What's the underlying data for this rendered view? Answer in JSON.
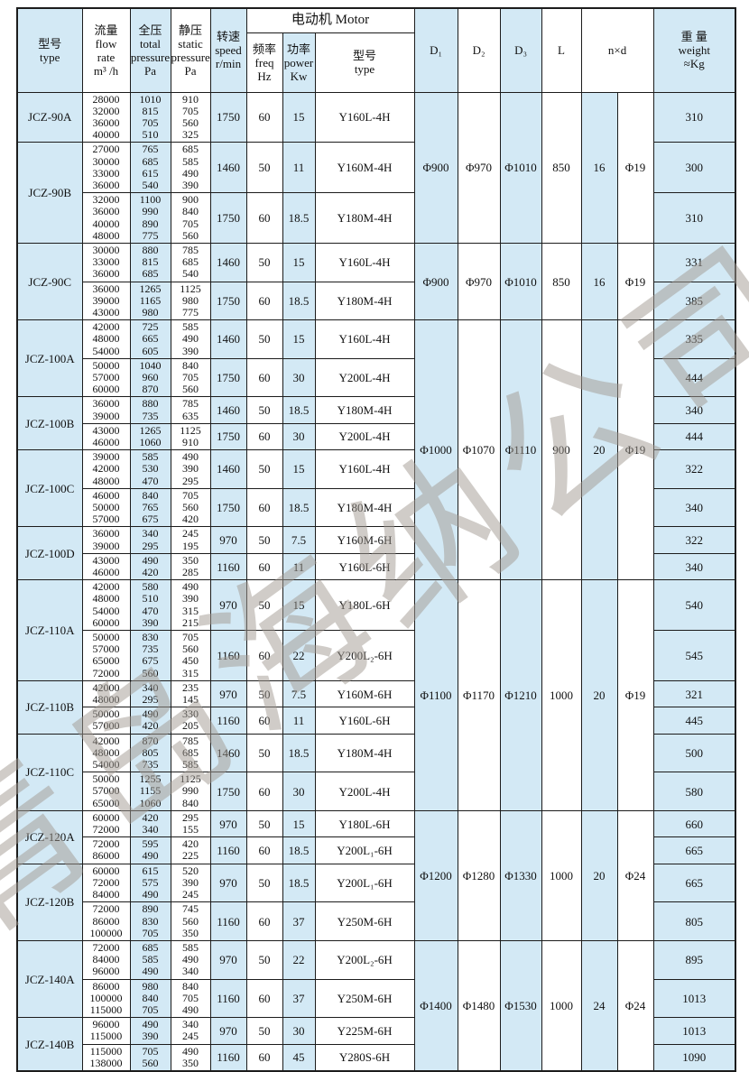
{
  "colors": {
    "cell_blue": "#d3e9f5",
    "border": "#1c1c1c",
    "text": "#111111",
    "watermark_gray": "#a29b93"
  },
  "watermark": "青岛海纳公司",
  "header": {
    "model": "型号\ntype",
    "flow": "流量\nflow\nrate\nm³ /h",
    "total_pressure": "全压\ntotal\npressure\nPa",
    "static_pressure": "静压\nstatic\npressure\nPa",
    "speed": "转速\nspeed\nr/min",
    "motor_group": "电动机 Motor",
    "freq": "频率\nfreq\nHz",
    "power": "功率\npower\nKw",
    "motor_type": "型号\ntype",
    "d1": "D₁",
    "d2": "D₂",
    "d3": "D₃",
    "l": "L",
    "nxd": "n×d",
    "weight": "重 量\nweight\n≈Kg"
  },
  "dim_groups": [
    {
      "d1": "Φ900",
      "d2": "Φ970",
      "d3": "Φ1010",
      "L": "850",
      "n": "16",
      "d": "Φ19",
      "models": [
        {
          "type": "JCZ-90A",
          "rows": [
            {
              "flow": [
                "28000",
                "32000",
                "36000",
                "40000"
              ],
              "total_pressure": [
                "1010",
                "815",
                "705",
                "510"
              ],
              "static_pressure": [
                "910",
                "705",
                "560",
                "325"
              ],
              "speed": "1750",
              "freq": "60",
              "power": "15",
              "motor": "Y160L-4H",
              "weight": "310"
            }
          ]
        },
        {
          "type": "JCZ-90B",
          "rows": [
            {
              "flow": [
                "27000",
                "30000",
                "33000",
                "36000"
              ],
              "total_pressure": [
                "765",
                "685",
                "615",
                "540"
              ],
              "static_pressure": [
                "685",
                "585",
                "490",
                "390"
              ],
              "speed": "1460",
              "freq": "50",
              "power": "11",
              "motor": "Y160M-4H",
              "weight": "300"
            },
            {
              "flow": [
                "32000",
                "36000",
                "40000",
                "48000"
              ],
              "total_pressure": [
                "1100",
                "990",
                "890",
                "775"
              ],
              "static_pressure": [
                "900",
                "840",
                "705",
                "560"
              ],
              "speed": "1750",
              "freq": "60",
              "power": "18.5",
              "motor": "Y180M-4H",
              "weight": "310"
            }
          ]
        }
      ]
    },
    {
      "d1": "Φ900",
      "d2": "Φ970",
      "d3": "Φ1010",
      "L": "850",
      "n": "16",
      "d": "Φ19",
      "models": [
        {
          "type": "JCZ-90C",
          "rows": [
            {
              "flow": [
                "30000",
                "33000",
                "36000"
              ],
              "total_pressure": [
                "880",
                "815",
                "685"
              ],
              "static_pressure": [
                "785",
                "685",
                "540"
              ],
              "speed": "1460",
              "freq": "50",
              "power": "15",
              "motor": "Y160L-4H",
              "weight": "331"
            },
            {
              "flow": [
                "36000",
                "39000",
                "43000"
              ],
              "total_pressure": [
                "1265",
                "1165",
                "980"
              ],
              "static_pressure": [
                "1125",
                "980",
                "775"
              ],
              "speed": "1750",
              "freq": "60",
              "power": "18.5",
              "motor": "Y180M-4H",
              "weight": "385"
            }
          ]
        }
      ]
    },
    {
      "d1": "Φ1000",
      "d2": "Φ1070",
      "d3": "Φ1110",
      "L": "900",
      "n": "20",
      "d": "Φ19",
      "models": [
        {
          "type": "JCZ-100A",
          "rows": [
            {
              "flow": [
                "42000",
                "48000",
                "54000"
              ],
              "total_pressure": [
                "725",
                "665",
                "605"
              ],
              "static_pressure": [
                "585",
                "490",
                "390"
              ],
              "speed": "1460",
              "freq": "50",
              "power": "15",
              "motor": "Y160L-4H",
              "weight": "335"
            },
            {
              "flow": [
                "50000",
                "57000",
                "60000"
              ],
              "total_pressure": [
                "1040",
                "960",
                "870"
              ],
              "static_pressure": [
                "840",
                "705",
                "560"
              ],
              "speed": "1750",
              "freq": "60",
              "power": "30",
              "motor": "Y200L-4H",
              "weight": "444"
            }
          ]
        },
        {
          "type": "JCZ-100B",
          "rows": [
            {
              "flow": [
                "36000",
                "39000"
              ],
              "total_pressure": [
                "880",
                "735"
              ],
              "static_pressure": [
                "785",
                "635"
              ],
              "speed": "1460",
              "freq": "50",
              "power": "18.5",
              "motor": "Y180M-4H",
              "weight": "340"
            },
            {
              "flow": [
                "43000",
                "46000"
              ],
              "total_pressure": [
                "1265",
                "1060"
              ],
              "static_pressure": [
                "1125",
                "910"
              ],
              "speed": "1750",
              "freq": "60",
              "power": "30",
              "motor": "Y200L-4H",
              "weight": "444"
            }
          ]
        },
        {
          "type": "JCZ-100C",
          "rows": [
            {
              "flow": [
                "39000",
                "42000",
                "48000"
              ],
              "total_pressure": [
                "585",
                "530",
                "470"
              ],
              "static_pressure": [
                "490",
                "390",
                "295"
              ],
              "speed": "1460",
              "freq": "50",
              "power": "15",
              "motor": "Y160L-4H",
              "weight": "322"
            },
            {
              "flow": [
                "46000",
                "50000",
                "57000"
              ],
              "total_pressure": [
                "840",
                "765",
                "675"
              ],
              "static_pressure": [
                "705",
                "560",
                "420"
              ],
              "speed": "1750",
              "freq": "60",
              "power": "18.5",
              "motor": "Y180M-4H",
              "weight": "340"
            }
          ]
        },
        {
          "type": "JCZ-100D",
          "rows": [
            {
              "flow": [
                "36000",
                "39000"
              ],
              "total_pressure": [
                "340",
                "295"
              ],
              "static_pressure": [
                "245",
                "195"
              ],
              "speed": "970",
              "freq": "50",
              "power": "7.5",
              "motor": "Y160M-6H",
              "weight": "322"
            },
            {
              "flow": [
                "43000",
                "46000"
              ],
              "total_pressure": [
                "490",
                "420"
              ],
              "static_pressure": [
                "350",
                "285"
              ],
              "speed": "1160",
              "freq": "60",
              "power": "11",
              "motor": "Y160L-6H",
              "weight": "340"
            }
          ]
        }
      ]
    },
    {
      "d1": "Φ1100",
      "d2": "Φ1170",
      "d3": "Φ1210",
      "L": "1000",
      "n": "20",
      "d": "Φ19",
      "models": [
        {
          "type": "JCZ-110A",
          "rows": [
            {
              "flow": [
                "42000",
                "48000",
                "54000",
                "60000"
              ],
              "total_pressure": [
                "580",
                "510",
                "470",
                "390"
              ],
              "static_pressure": [
                "490",
                "390",
                "315",
                "215"
              ],
              "speed": "970",
              "freq": "50",
              "power": "15",
              "motor": "Y180L-6H",
              "weight": "540"
            },
            {
              "flow": [
                "50000",
                "57000",
                "65000",
                "72000"
              ],
              "total_pressure": [
                "830",
                "735",
                "675",
                "560"
              ],
              "static_pressure": [
                "705",
                "560",
                "450",
                "315"
              ],
              "speed": "1160",
              "freq": "60",
              "power": "22",
              "motor": "Y200L₂-6H",
              "weight": "545"
            }
          ]
        },
        {
          "type": "JCZ-110B",
          "rows": [
            {
              "flow": [
                "42000",
                "48000"
              ],
              "total_pressure": [
                "340",
                "295"
              ],
              "static_pressure": [
                "235",
                "145"
              ],
              "speed": "970",
              "freq": "50",
              "power": "7.5",
              "motor": "Y160M-6H",
              "weight": "321"
            },
            {
              "flow": [
                "50000",
                "57000"
              ],
              "total_pressure": [
                "490",
                "420"
              ],
              "static_pressure": [
                "330",
                "205"
              ],
              "speed": "1160",
              "freq": "60",
              "power": "11",
              "motor": "Y160L-6H",
              "weight": "445"
            }
          ]
        },
        {
          "type": "JCZ-110C",
          "rows": [
            {
              "flow": [
                "42000",
                "48000",
                "54000"
              ],
              "total_pressure": [
                "870",
                "805",
                "735"
              ],
              "static_pressure": [
                "785",
                "685",
                "585"
              ],
              "speed": "1460",
              "freq": "50",
              "power": "18.5",
              "motor": "Y180M-4H",
              "weight": "500"
            },
            {
              "flow": [
                "50000",
                "57000",
                "65000"
              ],
              "total_pressure": [
                "1255",
                "1155",
                "1060"
              ],
              "static_pressure": [
                "1125",
                "990",
                "840"
              ],
              "speed": "1750",
              "freq": "60",
              "power": "30",
              "motor": "Y200L-4H",
              "weight": "580"
            }
          ]
        }
      ]
    },
    {
      "d1": "Φ1200",
      "d2": "Φ1280",
      "d3": "Φ1330",
      "L": "1000",
      "n": "20",
      "d": "Φ24",
      "models": [
        {
          "type": "JCZ-120A",
          "rows": [
            {
              "flow": [
                "60000",
                "72000"
              ],
              "total_pressure": [
                "420",
                "340"
              ],
              "static_pressure": [
                "295",
                "155"
              ],
              "speed": "970",
              "freq": "50",
              "power": "15",
              "motor": "Y180L-6H",
              "weight": "660"
            },
            {
              "flow": [
                "72000",
                "86000"
              ],
              "total_pressure": [
                "595",
                "490"
              ],
              "static_pressure": [
                "420",
                "225"
              ],
              "speed": "1160",
              "freq": "60",
              "power": "18.5",
              "motor": "Y200L₁-6H",
              "weight": "665"
            }
          ]
        },
        {
          "type": "JCZ-120B",
          "rows": [
            {
              "flow": [
                "60000",
                "72000",
                "84000"
              ],
              "total_pressure": [
                "615",
                "575",
                "490"
              ],
              "static_pressure": [
                "520",
                "390",
                "245"
              ],
              "speed": "970",
              "freq": "50",
              "power": "18.5",
              "motor": "Y200L₁-6H",
              "weight": "665"
            },
            {
              "flow": [
                "72000",
                "86000",
                "100000"
              ],
              "total_pressure": [
                "890",
                "830",
                "705"
              ],
              "static_pressure": [
                "745",
                "560",
                "350"
              ],
              "speed": "1160",
              "freq": "60",
              "power": "37",
              "motor": "Y250M-6H",
              "weight": "805"
            }
          ]
        }
      ]
    },
    {
      "d1": "Φ1400",
      "d2": "Φ1480",
      "d3": "Φ1530",
      "L": "1000",
      "n": "24",
      "d": "Φ24",
      "models": [
        {
          "type": "JCZ-140A",
          "rows": [
            {
              "flow": [
                "72000",
                "84000",
                "96000"
              ],
              "total_pressure": [
                "685",
                "585",
                "490"
              ],
              "static_pressure": [
                "585",
                "490",
                "340"
              ],
              "speed": "970",
              "freq": "50",
              "power": "22",
              "motor": "Y200L₂-6H",
              "weight": "895"
            },
            {
              "flow": [
                "86000",
                "100000",
                "115000"
              ],
              "total_pressure": [
                "980",
                "840",
                "705"
              ],
              "static_pressure": [
                "840",
                "705",
                "490"
              ],
              "speed": "1160",
              "freq": "60",
              "power": "37",
              "motor": "Y250M-6H",
              "weight": "1013"
            }
          ]
        },
        {
          "type": "JCZ-140B",
          "rows": [
            {
              "flow": [
                "96000",
                "115000"
              ],
              "total_pressure": [
                "490",
                "390"
              ],
              "static_pressure": [
                "340",
                "245"
              ],
              "speed": "970",
              "freq": "50",
              "power": "30",
              "motor": "Y225M-6H",
              "weight": "1013"
            },
            {
              "flow": [
                "115000",
                "138000"
              ],
              "total_pressure": [
                "705",
                "560"
              ],
              "static_pressure": [
                "490",
                "350"
              ],
              "speed": "1160",
              "freq": "60",
              "power": "45",
              "motor": "Y280S-6H",
              "weight": "1090"
            }
          ]
        }
      ]
    }
  ]
}
